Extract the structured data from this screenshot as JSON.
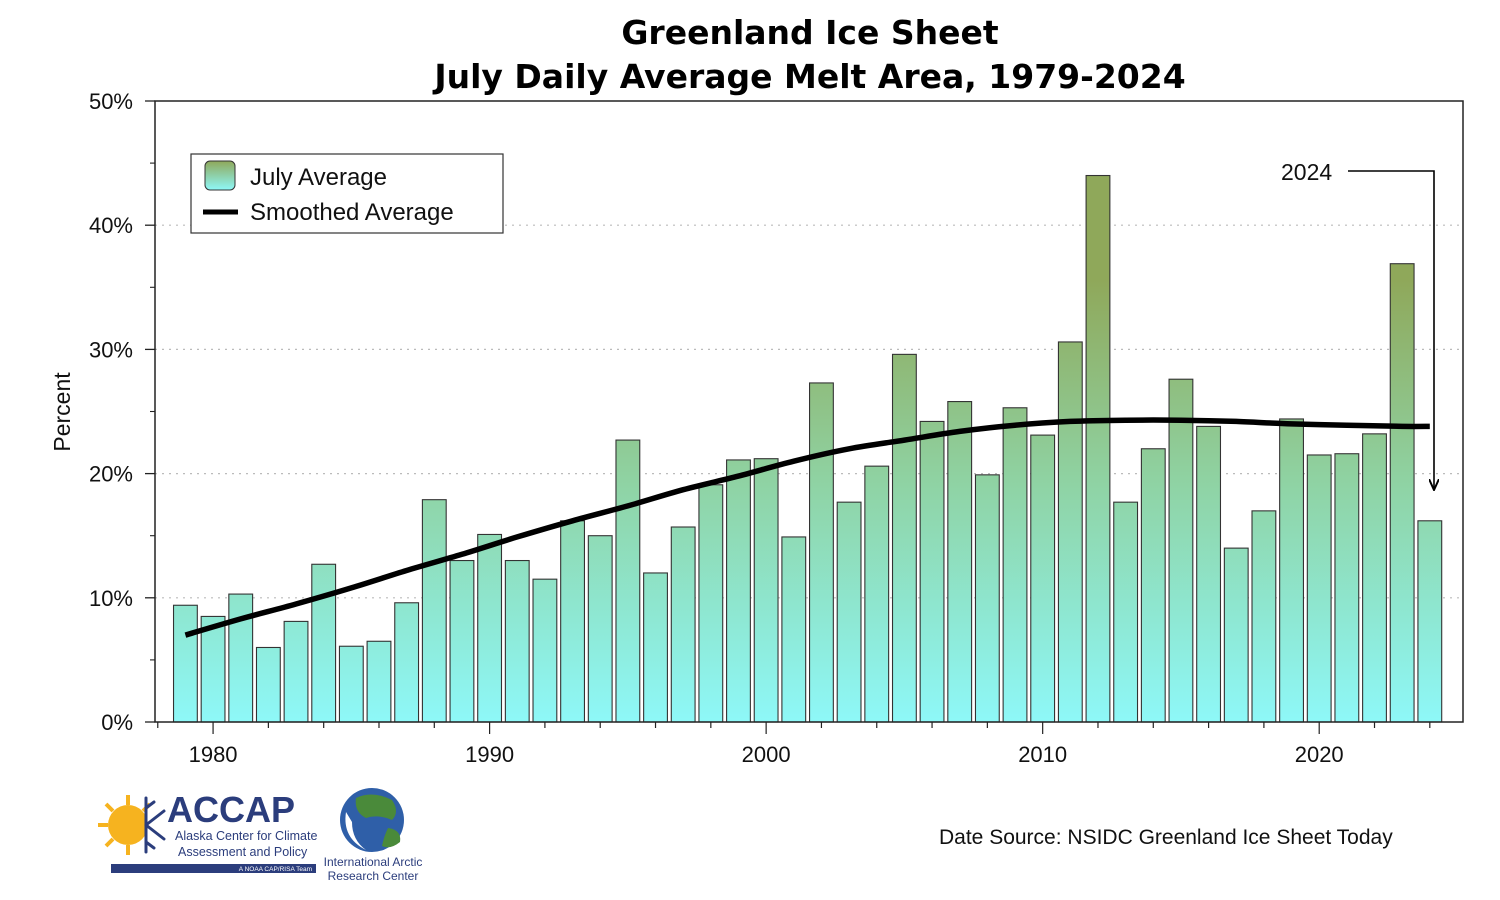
{
  "chart_data": {
    "type": "bar",
    "title": "Greenland Ice Sheet",
    "subtitle": "July Daily Average Melt Area, 1979-2024",
    "xlabel": "",
    "ylabel": "Percent",
    "ylim": [
      0,
      50
    ],
    "xlim": [
      1977.9,
      2025.2
    ],
    "y_ticks": [
      "0%",
      "10%",
      "20%",
      "30%",
      "40%",
      "50%"
    ],
    "x_ticks": [
      "1980",
      "1990",
      "2000",
      "2010",
      "2020"
    ],
    "grid": "horizontal dotted",
    "legend_position": "top-left",
    "categories": [
      1979,
      1980,
      1981,
      1982,
      1983,
      1984,
      1985,
      1986,
      1987,
      1988,
      1989,
      1990,
      1991,
      1992,
      1993,
      1994,
      1995,
      1996,
      1997,
      1998,
      1999,
      2000,
      2001,
      2002,
      2003,
      2004,
      2005,
      2006,
      2007,
      2008,
      2009,
      2010,
      2011,
      2012,
      2013,
      2014,
      2015,
      2016,
      2017,
      2018,
      2019,
      2020,
      2021,
      2022,
      2023,
      2024
    ],
    "series": [
      {
        "name": "July Average",
        "kind": "bar",
        "color_top": "#8fa85a",
        "color_bottom": "#8ef7f7",
        "values": [
          9.4,
          8.5,
          10.3,
          6.0,
          8.1,
          12.7,
          6.1,
          6.5,
          9.6,
          17.9,
          13.0,
          15.1,
          13.0,
          11.5,
          16.2,
          15.0,
          22.7,
          12.0,
          15.7,
          19.1,
          21.1,
          21.2,
          14.9,
          27.3,
          17.7,
          20.6,
          29.6,
          24.2,
          25.8,
          19.9,
          25.3,
          23.1,
          30.6,
          44.0,
          17.7,
          22.0,
          27.6,
          23.8,
          14.0,
          17.0,
          24.4,
          21.5,
          21.6,
          23.2,
          36.9,
          16.2
        ]
      },
      {
        "name": "Smoothed Average",
        "kind": "line",
        "color": "#000000",
        "x": [
          1979,
          1981,
          1983,
          1985,
          1987,
          1989,
          1991,
          1993,
          1995,
          1997,
          1999,
          2001,
          2003,
          2005,
          2007,
          2009,
          2011,
          2013,
          2015,
          2017,
          2019,
          2021,
          2023,
          2024
        ],
        "values": [
          7.0,
          8.3,
          9.5,
          10.8,
          12.2,
          13.5,
          14.9,
          16.2,
          17.4,
          18.7,
          19.8,
          21.0,
          22.0,
          22.7,
          23.4,
          23.9,
          24.2,
          24.3,
          24.3,
          24.2,
          24.0,
          23.9,
          23.8,
          23.8
        ]
      }
    ],
    "annotations": [
      {
        "text": "2024",
        "target_x": 2024
      }
    ],
    "source_text": "Date Source: NSIDC Greenland Ice Sheet Today"
  },
  "logos": {
    "accap_name": "ACCAP",
    "accap_line1": "Alaska Center for Climate",
    "accap_line2": "Assessment and Policy",
    "accap_tagline": "A NOAA CAP/RISA Team",
    "iarc_line1": "International Arctic",
    "iarc_line2": "Research Center"
  }
}
